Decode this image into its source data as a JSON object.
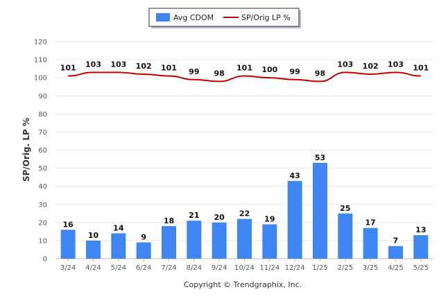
{
  "chart_data": {
    "type": "bar",
    "categories": [
      "3/24",
      "4/24",
      "5/24",
      "6/24",
      "7/24",
      "8/24",
      "9/24",
      "10/24",
      "11/24",
      "12/24",
      "1/25",
      "2/25",
      "3/25",
      "4/25",
      "5/25"
    ],
    "series": [
      {
        "name": "Avg CDOM",
        "type": "bar",
        "color": "#3f86f2",
        "values": [
          16,
          10,
          14,
          9,
          18,
          21,
          20,
          22,
          19,
          43,
          53,
          25,
          17,
          7,
          13
        ]
      },
      {
        "name": "SP/Orig LP %",
        "type": "line",
        "color": "#c00000",
        "values": [
          101,
          103,
          103,
          102,
          101,
          99,
          98,
          101,
          100,
          99,
          98,
          103,
          102,
          103,
          101
        ]
      }
    ],
    "ylabel": "SP/Orig. LP %",
    "ylim": [
      0,
      120
    ],
    "yticks": [
      0,
      10,
      20,
      30,
      40,
      50,
      60,
      70,
      80,
      90,
      100,
      110,
      120
    ],
    "grid": true,
    "legend_position": "top-center"
  },
  "footer": {
    "copyright": "Copyright © Trendgraphix, Inc."
  },
  "colors": {
    "bar": "#3f86f2",
    "line": "#c00000",
    "grid": "#e6e6e6"
  }
}
